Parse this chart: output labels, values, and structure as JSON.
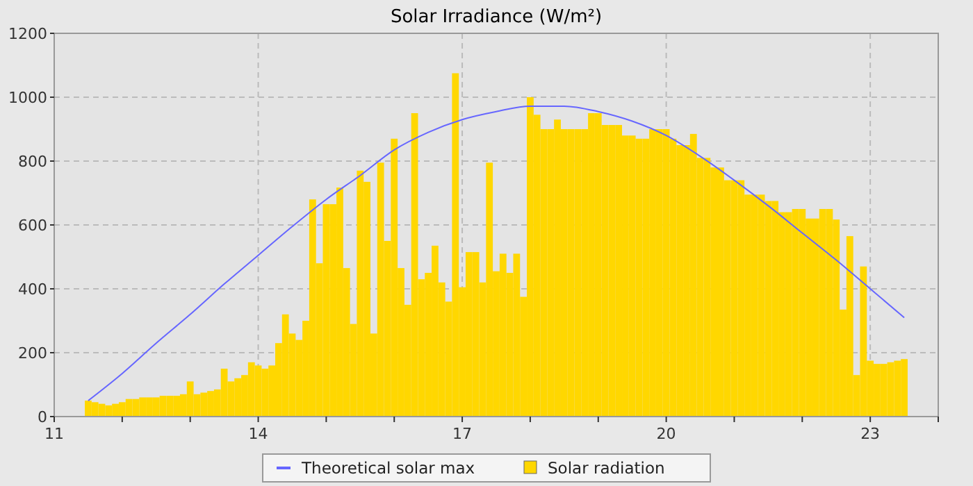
{
  "chart_data": {
    "type": "bar",
    "title": "Solar Irradiance (W/m²)",
    "x": [
      11.5,
      11.6,
      11.7,
      11.8,
      11.9,
      12.0,
      12.1,
      12.2,
      12.3,
      12.4,
      12.5,
      12.6,
      12.7,
      12.8,
      12.9,
      13.0,
      13.1,
      13.2,
      13.3,
      13.4,
      13.5,
      13.6,
      13.7,
      13.8,
      13.9,
      14.0,
      14.1,
      14.2,
      14.3,
      14.4,
      14.5,
      14.6,
      14.7,
      14.8,
      14.9,
      15.0,
      15.1,
      15.2,
      15.3,
      15.4,
      15.5,
      15.6,
      15.7,
      15.8,
      15.9,
      16.0,
      16.1,
      16.2,
      16.3,
      16.4,
      16.5,
      16.6,
      16.7,
      16.8,
      16.9,
      17.0,
      17.1,
      17.2,
      17.3,
      17.4,
      17.5,
      17.6,
      17.7,
      17.8,
      17.9,
      18.0,
      18.1,
      18.2,
      18.3,
      18.4,
      18.5,
      18.6,
      18.7,
      18.8,
      18.9,
      19.0,
      19.1,
      19.2,
      19.3,
      19.4,
      19.5,
      19.6,
      19.7,
      19.8,
      19.9,
      20.0,
      20.1,
      20.2,
      20.3,
      20.4,
      20.5,
      20.6,
      20.7,
      20.8,
      20.9,
      21.0,
      21.1,
      21.2,
      21.3,
      21.4,
      21.5,
      21.6,
      21.7,
      21.8,
      21.9,
      22.0,
      22.1,
      22.2,
      22.3,
      22.4,
      22.5,
      22.6,
      22.7,
      22.8,
      22.9,
      23.0,
      23.1,
      23.2,
      23.3,
      23.4,
      23.5
    ],
    "series": [
      {
        "name": "Theoretical solar max",
        "type": "line",
        "color": "#6666ff",
        "x": [
          11.5,
          12,
          12.5,
          13,
          13.5,
          14,
          14.5,
          15,
          15.5,
          16,
          16.5,
          17,
          17.5,
          18,
          18.5,
          19,
          19.5,
          20,
          20.5,
          21,
          21.5,
          22,
          22.5,
          23,
          23.5
        ],
        "values": [
          50,
          135,
          230,
          320,
          415,
          505,
          595,
          680,
          755,
          835,
          890,
          930,
          955,
          972,
          972,
          955,
          925,
          880,
          815,
          740,
          660,
          575,
          490,
          400,
          310
        ]
      },
      {
        "name": "Solar radiation",
        "color": "#ffd700",
        "values": [
          50,
          45,
          40,
          35,
          40,
          45,
          55,
          55,
          60,
          60,
          60,
          65,
          65,
          65,
          70,
          110,
          70,
          75,
          80,
          85,
          150,
          110,
          120,
          130,
          170,
          160,
          150,
          160,
          230,
          320,
          260,
          240,
          300,
          680,
          480,
          665,
          665,
          717,
          465,
          290,
          770,
          735,
          260,
          795,
          550,
          870,
          465,
          350,
          950,
          430,
          450,
          535,
          420,
          360,
          1075,
          405,
          515,
          515,
          420,
          795,
          455,
          510,
          450,
          510,
          375,
          1000,
          945,
          900,
          900,
          930,
          900,
          900,
          900,
          900,
          950,
          950,
          913,
          913,
          913,
          880,
          880,
          870,
          870,
          900,
          900,
          900,
          870,
          850,
          850,
          885,
          810,
          810,
          780,
          780,
          740,
          740,
          740,
          695,
          695,
          695,
          675,
          675,
          640,
          640,
          650,
          650,
          620,
          620,
          650,
          650,
          617,
          335,
          565,
          130,
          470,
          175,
          165,
          165,
          170,
          175,
          180
        ]
      }
    ],
    "xlim": [
      11,
      24
    ],
    "xticks": [
      11,
      {
        "value": 12,
        "label": null
      },
      {
        "value": 13,
        "label": null
      },
      14,
      {
        "value": 15,
        "label": null
      },
      {
        "value": 16,
        "label": null
      },
      17,
      {
        "value": 18,
        "label": null
      },
      {
        "value": 19,
        "label": null
      },
      20,
      {
        "value": 21,
        "label": null
      },
      {
        "value": 22,
        "label": null
      },
      23,
      {
        "value": 24,
        "label": null
      }
    ],
    "ylim": [
      0,
      1200
    ],
    "yticks": [
      0,
      200,
      400,
      600,
      800,
      1000,
      1200
    ],
    "grid": true,
    "legend": "bottom",
    "marker": "none",
    "line_style": "solid"
  }
}
